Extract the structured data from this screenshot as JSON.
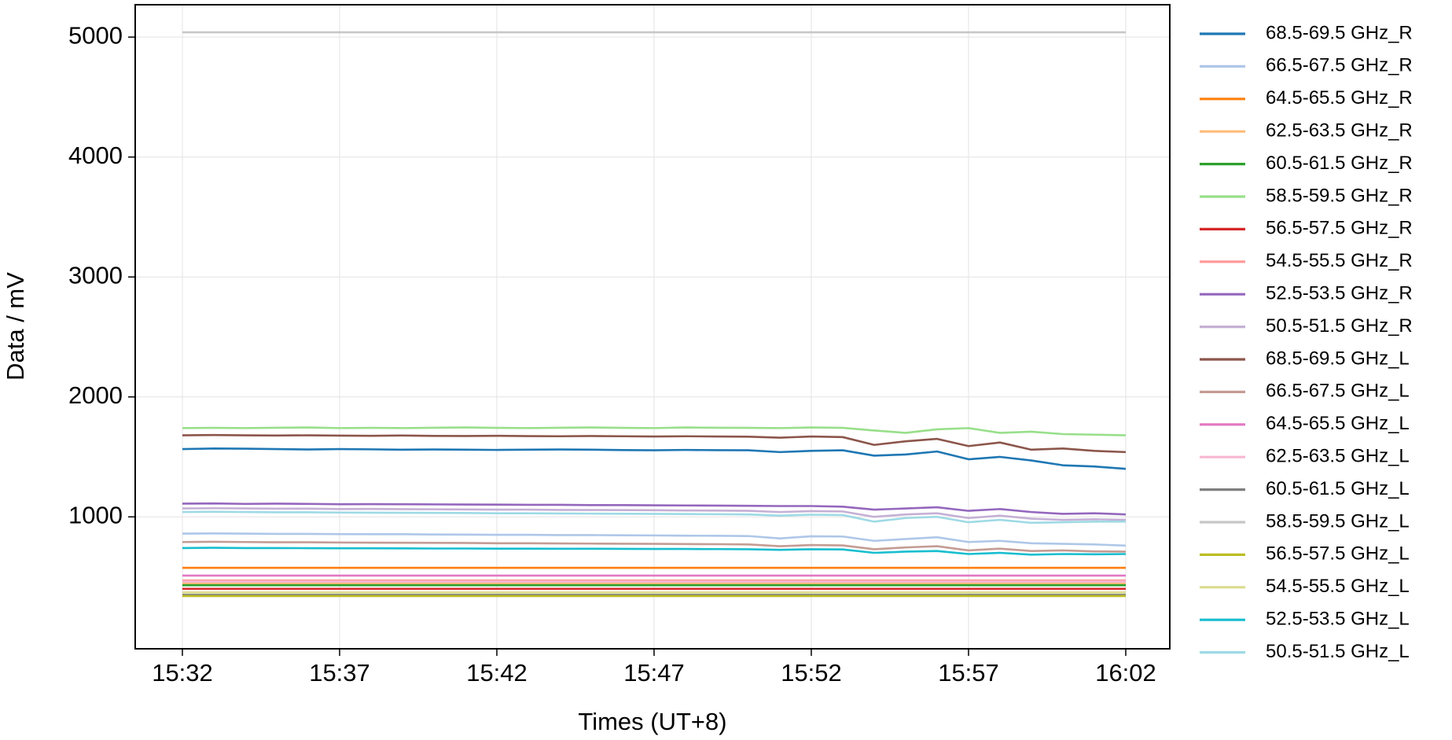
{
  "chart_data": {
    "type": "line",
    "x_label": "Times (UT+8)",
    "y_label": "Data / mV",
    "x": [
      "15:32",
      "15:33",
      "15:34",
      "15:35",
      "15:36",
      "15:37",
      "15:38",
      "15:39",
      "15:40",
      "15:41",
      "15:42",
      "15:43",
      "15:44",
      "15:45",
      "15:46",
      "15:47",
      "15:48",
      "15:49",
      "15:50",
      "15:51",
      "15:52",
      "15:53",
      "15:54",
      "15:55",
      "15:56",
      "15:57",
      "15:58",
      "15:59",
      "16:00",
      "16:01",
      "16:02"
    ],
    "xlim": [
      "15:30:30",
      "16:03:24"
    ],
    "xticks": [
      "15:32",
      "15:37",
      "15:42",
      "15:47",
      "15:52",
      "15:57",
      "16:02"
    ],
    "ylim": [
      -100,
      5270
    ],
    "yticks": [
      1000,
      2000,
      3000,
      4000,
      5000
    ],
    "grid": true,
    "legend": "outside-right",
    "series": [
      {
        "name": "68.5-69.5 GHz_R",
        "color": "#1f77b4",
        "values": [
          1565,
          1570,
          1568,
          1565,
          1562,
          1565,
          1563,
          1560,
          1562,
          1560,
          1558,
          1560,
          1562,
          1560,
          1557,
          1555,
          1558,
          1556,
          1555,
          1540,
          1550,
          1555,
          1510,
          1520,
          1545,
          1480,
          1500,
          1470,
          1430,
          1420,
          1400
        ]
      },
      {
        "name": "66.5-67.5 GHz_R",
        "color": "#aec7e8",
        "values": [
          860,
          862,
          860,
          858,
          858,
          856,
          855,
          855,
          853,
          852,
          850,
          850,
          848,
          848,
          846,
          845,
          843,
          842,
          840,
          820,
          838,
          836,
          800,
          815,
          830,
          790,
          800,
          780,
          775,
          770,
          760
        ]
      },
      {
        "name": "64.5-65.5 GHz_R",
        "color": "#ff7f0e",
        "values": [
          575,
          575,
          575,
          575,
          575,
          575,
          575,
          575,
          575,
          575,
          575,
          575,
          575,
          575,
          575,
          575,
          575,
          575,
          575,
          575,
          575,
          575,
          575,
          575,
          575,
          575,
          575,
          575,
          575,
          575,
          575
        ]
      },
      {
        "name": "62.5-63.5 GHz_R",
        "color": "#ffbb78",
        "values": [
          445,
          445,
          445,
          445,
          445,
          445,
          445,
          445,
          445,
          445,
          445,
          445,
          445,
          445,
          445,
          445,
          445,
          445,
          445,
          445,
          445,
          445,
          445,
          445,
          445,
          445,
          445,
          445,
          445,
          445,
          445
        ]
      },
      {
        "name": "60.5-61.5 GHz_R",
        "color": "#2ca02c",
        "values": [
          430,
          430,
          430,
          430,
          430,
          430,
          430,
          430,
          430,
          430,
          430,
          430,
          430,
          430,
          430,
          430,
          430,
          430,
          430,
          430,
          430,
          430,
          430,
          430,
          430,
          430,
          430,
          430,
          430,
          430,
          430
        ]
      },
      {
        "name": "58.5-59.5 GHz_R",
        "color": "#98df8a",
        "values": [
          1740,
          1742,
          1740,
          1743,
          1745,
          1740,
          1742,
          1740,
          1743,
          1745,
          1742,
          1740,
          1743,
          1745,
          1742,
          1740,
          1745,
          1743,
          1742,
          1740,
          1745,
          1742,
          1720,
          1700,
          1730,
          1740,
          1700,
          1710,
          1690,
          1685,
          1680
        ]
      },
      {
        "name": "56.5-57.5 GHz_R",
        "color": "#d62728",
        "values": [
          400,
          400,
          400,
          400,
          400,
          400,
          400,
          400,
          400,
          400,
          400,
          400,
          400,
          400,
          400,
          400,
          400,
          400,
          400,
          400,
          400,
          400,
          400,
          400,
          400,
          400,
          400,
          400,
          400,
          400,
          400
        ]
      },
      {
        "name": "54.5-55.5 GHz_R",
        "color": "#ff9896",
        "values": [
          470,
          470,
          470,
          470,
          470,
          470,
          470,
          470,
          470,
          470,
          470,
          470,
          470,
          470,
          470,
          470,
          470,
          470,
          470,
          470,
          470,
          470,
          470,
          470,
          470,
          470,
          470,
          470,
          470,
          470,
          470
        ]
      },
      {
        "name": "52.5-53.5 GHz_R",
        "color": "#9467bd",
        "values": [
          1110,
          1112,
          1108,
          1110,
          1108,
          1105,
          1106,
          1105,
          1104,
          1103,
          1102,
          1100,
          1100,
          1098,
          1098,
          1096,
          1095,
          1094,
          1092,
          1090,
          1090,
          1085,
          1060,
          1070,
          1080,
          1050,
          1065,
          1040,
          1025,
          1030,
          1020
        ]
      },
      {
        "name": "50.5-51.5 GHz_R",
        "color": "#c5b0d5",
        "values": [
          1070,
          1072,
          1070,
          1068,
          1068,
          1065,
          1066,
          1064,
          1063,
          1062,
          1060,
          1060,
          1058,
          1057,
          1056,
          1055,
          1053,
          1052,
          1050,
          1040,
          1048,
          1045,
          1000,
          1020,
          1030,
          990,
          1010,
          985,
          975,
          980,
          975
        ]
      },
      {
        "name": "68.5-69.5 GHz_L",
        "color": "#8c564b",
        "values": [
          1680,
          1682,
          1680,
          1678,
          1680,
          1677,
          1676,
          1678,
          1675,
          1674,
          1676,
          1673,
          1672,
          1674,
          1672,
          1670,
          1672,
          1670,
          1668,
          1660,
          1670,
          1665,
          1600,
          1630,
          1650,
          1590,
          1620,
          1560,
          1570,
          1550,
          1540
        ]
      },
      {
        "name": "66.5-67.5 GHz_L",
        "color": "#c49c94",
        "values": [
          790,
          792,
          790,
          788,
          788,
          786,
          785,
          784,
          783,
          782,
          780,
          780,
          778,
          777,
          776,
          775,
          773,
          772,
          770,
          755,
          765,
          762,
          730,
          745,
          755,
          720,
          735,
          715,
          720,
          712,
          710
        ]
      },
      {
        "name": "64.5-65.5 GHz_L",
        "color": "#e377c2",
        "values": [
          510,
          510,
          510,
          510,
          510,
          510,
          510,
          510,
          510,
          510,
          510,
          510,
          510,
          510,
          510,
          510,
          510,
          510,
          510,
          510,
          510,
          510,
          510,
          510,
          510,
          510,
          510,
          510,
          510,
          510,
          510
        ]
      },
      {
        "name": "62.5-63.5 GHz_L",
        "color": "#f7b6d2",
        "values": [
          460,
          460,
          460,
          460,
          460,
          460,
          460,
          460,
          460,
          460,
          460,
          460,
          460,
          460,
          460,
          460,
          460,
          460,
          460,
          460,
          460,
          460,
          460,
          460,
          460,
          460,
          460,
          460,
          460,
          460,
          460
        ]
      },
      {
        "name": "60.5-61.5 GHz_L",
        "color": "#7f7f7f",
        "values": [
          350,
          350,
          350,
          350,
          350,
          350,
          350,
          350,
          350,
          350,
          350,
          350,
          350,
          350,
          350,
          350,
          350,
          350,
          350,
          350,
          350,
          350,
          350,
          350,
          350,
          350,
          350,
          350,
          350,
          350,
          350
        ]
      },
      {
        "name": "58.5-59.5 GHz_L",
        "color": "#c7c7c7",
        "values": [
          5040,
          5040,
          5040,
          5040,
          5040,
          5040,
          5040,
          5040,
          5040,
          5040,
          5040,
          5040,
          5040,
          5040,
          5040,
          5040,
          5040,
          5040,
          5040,
          5040,
          5040,
          5040,
          5040,
          5040,
          5040,
          5040,
          5040,
          5040,
          5040,
          5040,
          5040
        ]
      },
      {
        "name": "56.5-57.5 GHz_L",
        "color": "#bcbd22",
        "values": [
          340,
          340,
          340,
          340,
          340,
          340,
          340,
          340,
          340,
          340,
          340,
          340,
          340,
          340,
          340,
          340,
          340,
          340,
          340,
          340,
          340,
          340,
          340,
          340,
          340,
          340,
          340,
          340,
          340,
          340,
          340
        ]
      },
      {
        "name": "54.5-55.5 GHz_L",
        "color": "#dbdb8d",
        "values": [
          370,
          370,
          370,
          370,
          370,
          370,
          370,
          370,
          370,
          370,
          370,
          370,
          370,
          370,
          370,
          370,
          370,
          370,
          370,
          370,
          370,
          370,
          370,
          370,
          370,
          370,
          370,
          370,
          370,
          370,
          370
        ]
      },
      {
        "name": "52.5-53.5 GHz_L",
        "color": "#17becf",
        "values": [
          740,
          742,
          740,
          740,
          739,
          738,
          738,
          737,
          736,
          736,
          735,
          735,
          734,
          734,
          733,
          732,
          732,
          731,
          730,
          725,
          730,
          728,
          700,
          710,
          715,
          690,
          700,
          685,
          690,
          688,
          690
        ]
      },
      {
        "name": "50.5-51.5 GHz_L",
        "color": "#9edae5",
        "values": [
          1040,
          1042,
          1040,
          1038,
          1038,
          1036,
          1035,
          1034,
          1033,
          1032,
          1030,
          1030,
          1028,
          1027,
          1026,
          1025,
          1023,
          1022,
          1020,
          1010,
          1018,
          1015,
          960,
          990,
          1000,
          955,
          975,
          950,
          955,
          960,
          960
        ]
      }
    ]
  }
}
